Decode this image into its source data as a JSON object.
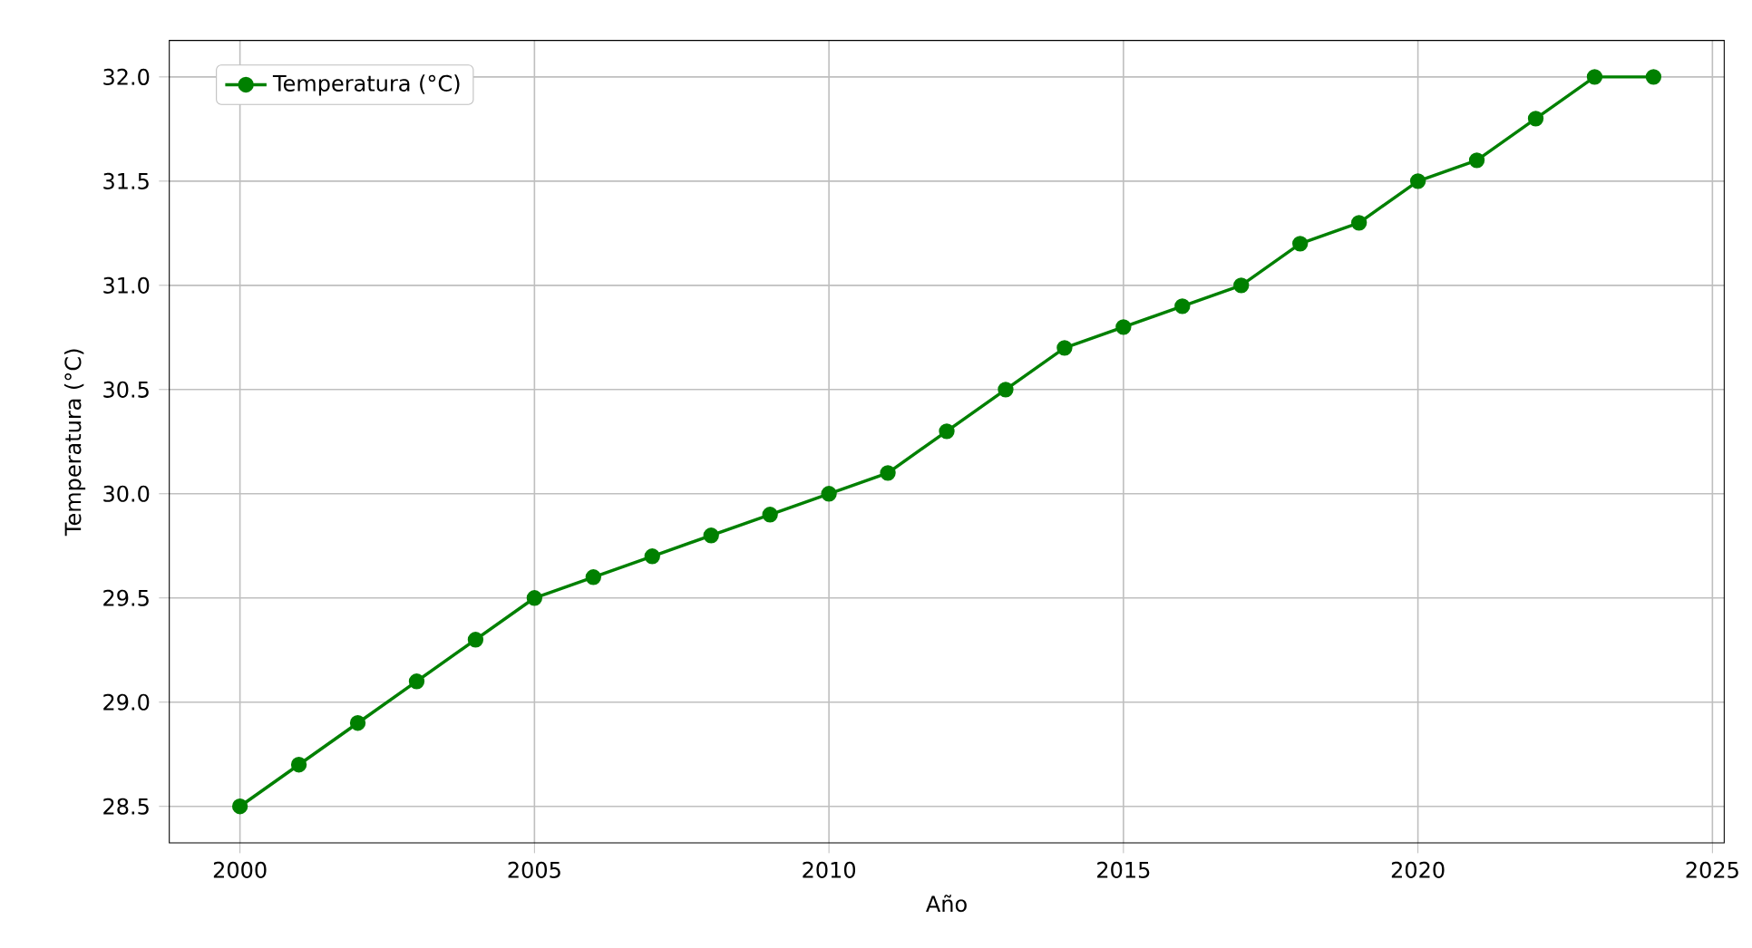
{
  "chart_data": {
    "type": "line",
    "xlabel": "Año",
    "ylabel": "Temperatura (°C)",
    "x": [
      2000,
      2001,
      2002,
      2003,
      2004,
      2005,
      2006,
      2007,
      2008,
      2009,
      2010,
      2011,
      2012,
      2013,
      2014,
      2015,
      2016,
      2017,
      2018,
      2019,
      2020,
      2021,
      2022,
      2023,
      2024
    ],
    "series": [
      {
        "name": "Temperatura (°C)",
        "color": "#008000",
        "values": [
          28.5,
          28.7,
          28.9,
          29.1,
          29.3,
          29.5,
          29.6,
          29.7,
          29.8,
          29.9,
          30.0,
          30.1,
          30.3,
          30.5,
          30.7,
          30.8,
          30.9,
          31.0,
          31.2,
          31.3,
          31.5,
          31.6,
          31.8,
          32.0,
          32.0
        ]
      }
    ],
    "xlim": [
      1998.8,
      2025.2
    ],
    "ylim": [
      28.325,
      32.175
    ],
    "xticks": [
      2000,
      2005,
      2010,
      2015,
      2020,
      2025
    ],
    "yticks": [
      28.5,
      {
        "value": 29,
        "label": "29.0"
      },
      29.5,
      {
        "value": 30,
        "label": "30.0"
      },
      30.5,
      {
        "value": 31,
        "label": "31.0"
      },
      31.5,
      {
        "value": 32,
        "label": "32.0"
      }
    ],
    "grid": true,
    "legend": "top left",
    "marker": "circle",
    "line_style": "solid"
  }
}
